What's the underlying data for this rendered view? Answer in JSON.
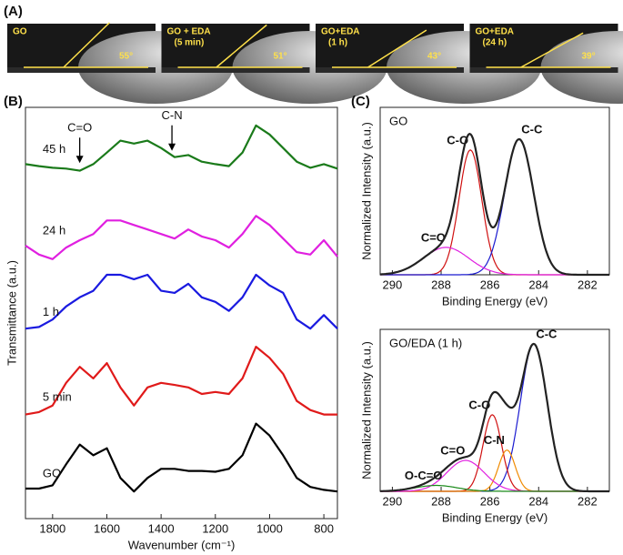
{
  "panel_a": {
    "label": "(A)",
    "images": [
      {
        "label": [
          "GO"
        ],
        "angle": "55°"
      },
      {
        "label": [
          "GO + EDA",
          "(5 min)"
        ],
        "angle": "51°"
      },
      {
        "label": [
          "GO+EDA",
          "(1 h)"
        ],
        "angle": "43°"
      },
      {
        "label": [
          "GO+EDA",
          "(24 h)"
        ],
        "angle": "39°"
      }
    ]
  },
  "chart_data": [
    {
      "type": "line",
      "panel_label": "(B)",
      "x_label": "Wavenumber (cm⁻¹)",
      "y_label": "Transmittance (a.u.)",
      "x": [
        1900,
        1850,
        1800,
        1750,
        1700,
        1650,
        1600,
        1550,
        1500,
        1450,
        1400,
        1350,
        1300,
        1250,
        1200,
        1150,
        1100,
        1050,
        1000,
        950,
        900,
        850,
        800,
        750
      ],
      "xlim": [
        1900,
        750
      ],
      "xticks": [
        1800,
        1600,
        1400,
        1200,
        1000,
        800
      ],
      "ylim": [
        0,
        100
      ],
      "series": [
        {
          "name": "45 h",
          "color": "#1a7a1a",
          "values": [
            86.2,
            85.7,
            85.3,
            85.1,
            84.6,
            86.2,
            89.0,
            91.9,
            91.2,
            91.9,
            90.1,
            87.9,
            88.4,
            86.8,
            86.2,
            85.7,
            89.0,
            95.6,
            93.4,
            90.1,
            86.8,
            85.3,
            86.2,
            85.1
          ]
        },
        {
          "name": "24 h",
          "color": "#e020e0",
          "values": [
            66.4,
            64.2,
            63.1,
            65.9,
            67.7,
            69.2,
            72.5,
            72.5,
            71.4,
            70.3,
            69.2,
            68.1,
            70.3,
            68.6,
            67.7,
            65.9,
            69.2,
            73.6,
            71.4,
            68.1,
            64.8,
            64.2,
            67.7,
            63.7
          ]
        },
        {
          "name": "1 h",
          "color": "#1a1ae0",
          "values": [
            46.2,
            46.6,
            48.4,
            51.6,
            53.8,
            55.4,
            59.3,
            59.3,
            58.2,
            59.3,
            55.4,
            54.9,
            57.1,
            53.8,
            52.7,
            50.5,
            53.8,
            59.3,
            56.7,
            54.9,
            48.4,
            46.2,
            49.5,
            46.2
          ]
        },
        {
          "name": "5 min",
          "color": "#e01a1a",
          "values": [
            25.3,
            25.9,
            27.5,
            33.0,
            36.9,
            34.1,
            37.8,
            31.9,
            27.5,
            31.9,
            33.0,
            32.5,
            31.9,
            30.3,
            30.8,
            30.3,
            34.1,
            41.8,
            39.1,
            35.2,
            28.6,
            26.4,
            25.3,
            25.3
          ]
        },
        {
          "name": "GO",
          "color": "#000000",
          "values": [
            7.3,
            7.3,
            8.1,
            13.2,
            18.0,
            15.4,
            17.1,
            9.9,
            6.6,
            9.9,
            12.1,
            12.1,
            11.6,
            11.6,
            11.4,
            12.1,
            15.4,
            23.1,
            20.2,
            15.4,
            9.9,
            7.7,
            7.0,
            6.6
          ]
        }
      ],
      "annotations": [
        {
          "text": "C=O",
          "x": 1700,
          "y": 86
        },
        {
          "text": "C-N",
          "x": 1360,
          "y": 89
        }
      ]
    },
    {
      "type": "peaks",
      "panel_label": "(C)",
      "title": "GO",
      "x_label": "Binding Energy (eV)",
      "y_label": "Normalized Intensity (a.u.)",
      "xlim": [
        290.5,
        281.1
      ],
      "xticks": [
        290,
        288,
        286,
        284,
        282
      ],
      "ylim": [
        0,
        1.1
      ],
      "components": [
        {
          "name": "C-O",
          "color": "#d01010",
          "center": 286.8,
          "height": 0.82,
          "fwhm": 1.1
        },
        {
          "name": "C-C",
          "color": "#1a1ad0",
          "center": 284.8,
          "height": 0.89,
          "fwhm": 1.4
        },
        {
          "name": "C=O",
          "color": "#e020e0",
          "center": 287.8,
          "height": 0.18,
          "fwhm": 2.2
        }
      ]
    },
    {
      "type": "peaks",
      "title": "GO/EDA (1 h)",
      "x_label": "Binding Energy (eV)",
      "y_label": "Normalized Intensity (a.u.)",
      "xlim": [
        290.5,
        281.1
      ],
      "xticks": [
        290,
        288,
        286,
        284,
        282
      ],
      "ylim": [
        0,
        1.1
      ],
      "components": [
        {
          "name": "C-C",
          "color": "#1a1ad0",
          "center": 284.2,
          "height": 1.0,
          "fwhm": 1.3
        },
        {
          "name": "C-O",
          "color": "#d01010",
          "center": 285.9,
          "height": 0.52,
          "fwhm": 0.9
        },
        {
          "name": "C-N",
          "color": "#f08a00",
          "center": 285.3,
          "height": 0.28,
          "fwhm": 0.8
        },
        {
          "name": "C=O",
          "color": "#e020e0",
          "center": 287.0,
          "height": 0.21,
          "fwhm": 1.8
        },
        {
          "name": "O-C=O",
          "color": "#1a8a1a",
          "center": 288.2,
          "height": 0.04,
          "fwhm": 2.0
        }
      ]
    }
  ]
}
